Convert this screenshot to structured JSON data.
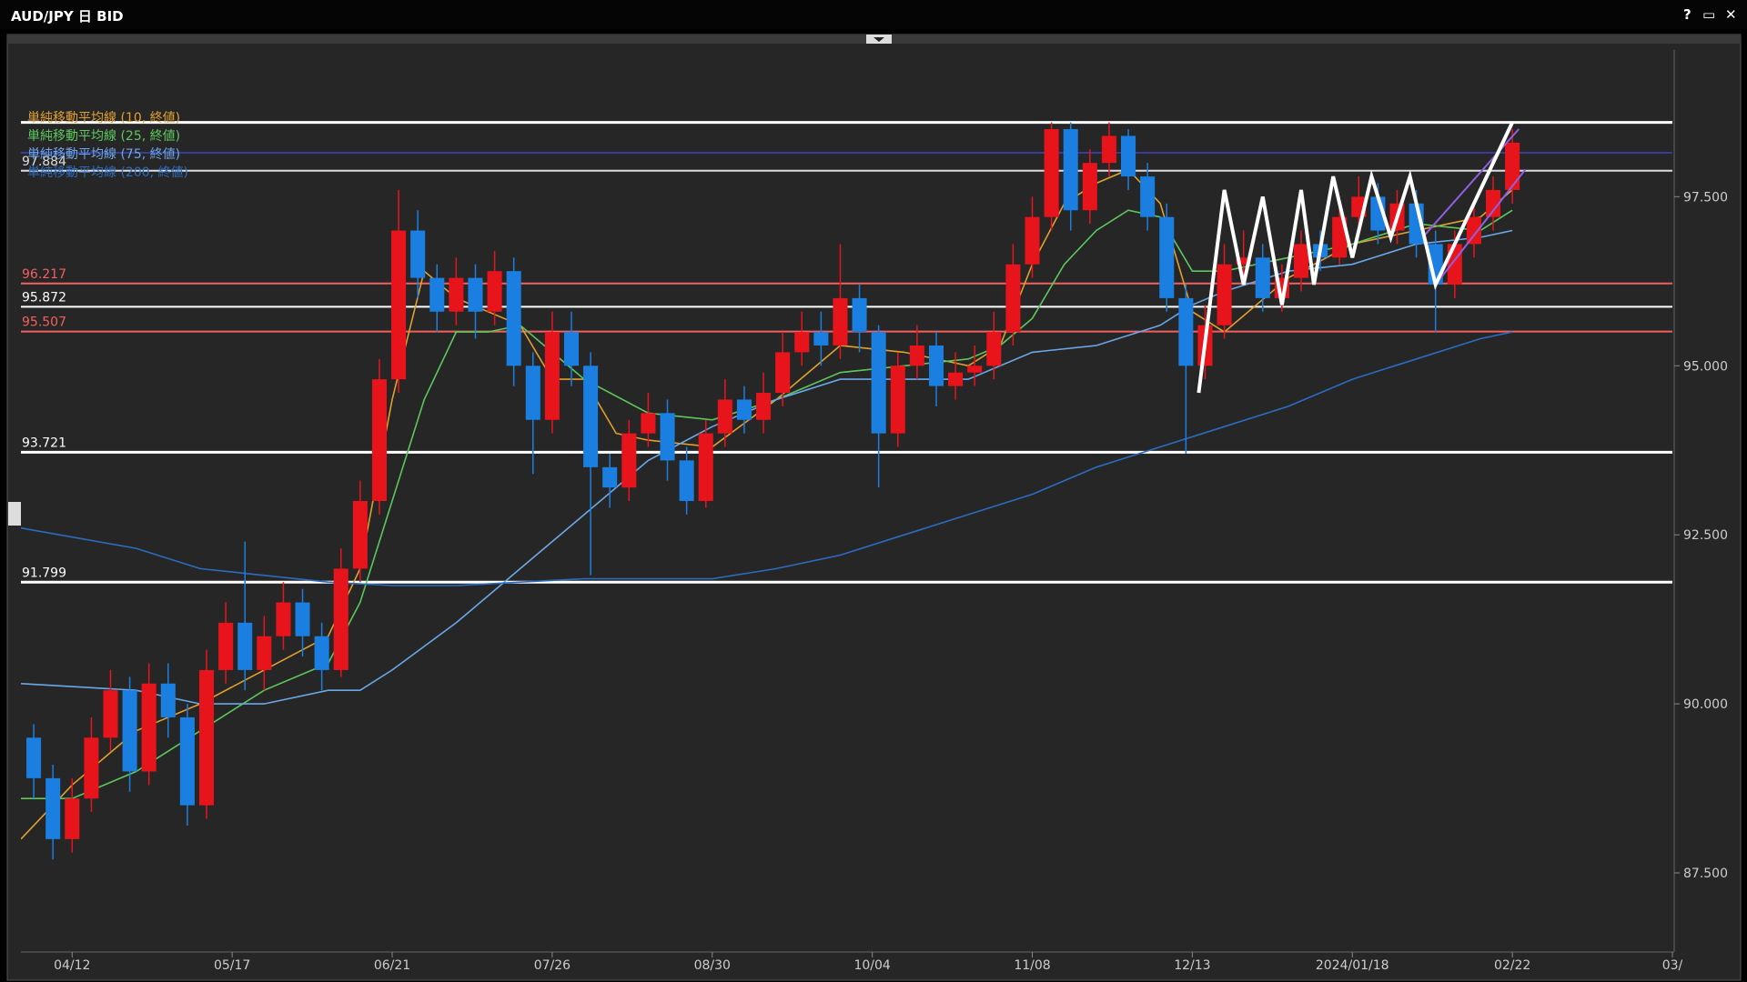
{
  "header": {
    "title": "AUD/JPY 日 BID"
  },
  "chart_data": {
    "type": "candlestick",
    "x": [
      -6,
      -3,
      0,
      3,
      6,
      9,
      12,
      15,
      18,
      21,
      24,
      27,
      30,
      33,
      36,
      39,
      42,
      45,
      48,
      51,
      54,
      57,
      60,
      63,
      66,
      69,
      72,
      75,
      78,
      81,
      84,
      87,
      90,
      93,
      96,
      99,
      102,
      105,
      108,
      111,
      114,
      117,
      120,
      123,
      126,
      129,
      132,
      135,
      138,
      141,
      144,
      147,
      150,
      153,
      156,
      159,
      162,
      165,
      168,
      171,
      174,
      177,
      180,
      183,
      186,
      189,
      192,
      195,
      198,
      201,
      204,
      207,
      210,
      213,
      216,
      219,
      222,
      225
    ],
    "ohlc": [
      [
        89.5,
        89.7,
        88.6,
        88.9
      ],
      [
        88.9,
        89.1,
        87.7,
        88.0
      ],
      [
        88.0,
        88.9,
        87.8,
        88.6
      ],
      [
        88.6,
        89.8,
        88.4,
        89.5
      ],
      [
        89.5,
        90.5,
        89.3,
        90.2
      ],
      [
        90.2,
        90.4,
        88.7,
        89.0
      ],
      [
        89.0,
        90.6,
        88.8,
        90.3
      ],
      [
        90.3,
        90.6,
        89.5,
        89.8
      ],
      [
        89.8,
        90.0,
        88.2,
        88.5
      ],
      [
        88.5,
        90.8,
        88.3,
        90.5
      ],
      [
        90.5,
        91.5,
        90.3,
        91.2
      ],
      [
        91.2,
        92.4,
        90.2,
        90.5
      ],
      [
        90.5,
        91.3,
        90.2,
        91.0
      ],
      [
        91.0,
        91.8,
        90.8,
        91.5
      ],
      [
        91.5,
        91.7,
        90.7,
        91.0
      ],
      [
        91.0,
        91.2,
        90.2,
        90.5
      ],
      [
        90.5,
        92.3,
        90.4,
        92.0
      ],
      [
        92.0,
        93.3,
        91.8,
        93.0
      ],
      [
        93.0,
        95.1,
        92.8,
        94.8
      ],
      [
        94.8,
        97.6,
        94.6,
        97.0
      ],
      [
        97.0,
        97.3,
        96.0,
        96.3
      ],
      [
        96.3,
        96.5,
        95.5,
        95.8
      ],
      [
        95.8,
        96.6,
        95.6,
        96.3
      ],
      [
        96.3,
        96.5,
        95.4,
        95.8
      ],
      [
        95.8,
        96.7,
        95.6,
        96.4
      ],
      [
        96.4,
        96.6,
        94.7,
        95.0
      ],
      [
        95.0,
        95.2,
        93.4,
        94.2
      ],
      [
        94.2,
        95.8,
        94.0,
        95.5
      ],
      [
        95.5,
        95.8,
        94.7,
        95.0
      ],
      [
        95.0,
        95.2,
        91.9,
        93.5
      ],
      [
        93.5,
        93.7,
        92.9,
        93.2
      ],
      [
        93.2,
        94.2,
        93.0,
        94.0
      ],
      [
        94.0,
        94.6,
        93.8,
        94.3
      ],
      [
        94.3,
        94.5,
        93.3,
        93.6
      ],
      [
        93.6,
        93.8,
        92.8,
        93.0
      ],
      [
        93.0,
        94.2,
        92.9,
        94.0
      ],
      [
        94.0,
        94.8,
        93.8,
        94.5
      ],
      [
        94.5,
        94.7,
        94.0,
        94.2
      ],
      [
        94.2,
        94.9,
        94.0,
        94.6
      ],
      [
        94.6,
        95.5,
        94.4,
        95.2
      ],
      [
        95.2,
        95.8,
        95.0,
        95.5
      ],
      [
        95.5,
        95.8,
        95.0,
        95.3
      ],
      [
        95.3,
        96.8,
        95.1,
        96.0
      ],
      [
        96.0,
        96.2,
        95.2,
        95.5
      ],
      [
        95.5,
        95.6,
        93.2,
        94.0
      ],
      [
        94.0,
        95.2,
        93.8,
        95.0
      ],
      [
        95.0,
        95.6,
        94.8,
        95.3
      ],
      [
        95.3,
        95.5,
        94.4,
        94.7
      ],
      [
        94.7,
        95.2,
        94.5,
        94.9
      ],
      [
        94.9,
        95.3,
        94.7,
        95.0
      ],
      [
        95.0,
        95.8,
        94.8,
        95.5
      ],
      [
        95.5,
        96.8,
        95.3,
        96.5
      ],
      [
        96.5,
        97.5,
        96.3,
        97.2
      ],
      [
        97.2,
        98.6,
        97.0,
        98.5
      ],
      [
        98.5,
        98.6,
        97.0,
        97.3
      ],
      [
        97.3,
        98.2,
        97.1,
        98.0
      ],
      [
        98.0,
        98.6,
        97.8,
        98.4
      ],
      [
        98.4,
        98.5,
        97.6,
        97.8
      ],
      [
        97.8,
        98.0,
        97.0,
        97.2
      ],
      [
        97.2,
        97.4,
        95.8,
        96.0
      ],
      [
        96.0,
        96.2,
        93.7,
        95.0
      ],
      [
        95.0,
        95.9,
        94.8,
        95.6
      ],
      [
        95.6,
        96.8,
        95.4,
        96.5
      ],
      [
        96.5,
        97.0,
        96.3,
        96.6
      ],
      [
        96.6,
        96.8,
        95.8,
        96.0
      ],
      [
        96.0,
        96.5,
        95.8,
        96.3
      ],
      [
        96.3,
        97.0,
        96.1,
        96.8
      ],
      [
        96.8,
        97.0,
        96.4,
        96.6
      ],
      [
        96.6,
        97.4,
        96.5,
        97.2
      ],
      [
        97.2,
        97.8,
        97.0,
        97.5
      ],
      [
        97.5,
        97.7,
        96.8,
        97.0
      ],
      [
        97.0,
        97.6,
        96.8,
        97.4
      ],
      [
        97.4,
        97.6,
        96.6,
        96.8
      ],
      [
        96.8,
        97.0,
        95.5,
        96.2
      ],
      [
        96.2,
        97.0,
        96.0,
        96.8
      ],
      [
        96.8,
        97.4,
        96.6,
        97.2
      ],
      [
        97.2,
        97.8,
        97.0,
        97.6
      ],
      [
        97.6,
        98.5,
        97.4,
        98.3
      ]
    ],
    "up_color": "#e8141c",
    "down_color": "#1a7fe0",
    "series": [
      {
        "name": "単純移動平均線 (10, 終値)",
        "color": "#e0a030",
        "x": [
          -8,
          0,
          10,
          20,
          30,
          40,
          45,
          50,
          55,
          60,
          65,
          70,
          75,
          80,
          85,
          90,
          100,
          110,
          120,
          130,
          140,
          145,
          150,
          155,
          160,
          165,
          170,
          175,
          180,
          190,
          200,
          210,
          220,
          225
        ],
        "values": [
          88.0,
          88.8,
          89.6,
          90.0,
          90.5,
          91.0,
          92.0,
          94.5,
          96.4,
          96.0,
          95.8,
          95.6,
          94.8,
          94.8,
          94.0,
          93.9,
          93.8,
          94.5,
          95.3,
          95.2,
          95.0,
          95.3,
          96.5,
          97.4,
          97.7,
          97.9,
          97.4,
          95.8,
          95.5,
          96.3,
          96.8,
          97.0,
          97.2,
          97.6
        ]
      },
      {
        "name": "単純移動平均線 (25, 終値)",
        "color": "#5cc85c",
        "x": [
          -8,
          0,
          10,
          20,
          30,
          40,
          45,
          50,
          55,
          60,
          65,
          70,
          75,
          80,
          90,
          100,
          110,
          120,
          130,
          140,
          145,
          150,
          155,
          160,
          165,
          170,
          175,
          180,
          190,
          200,
          210,
          220,
          225
        ],
        "values": [
          88.6,
          88.6,
          89.0,
          89.6,
          90.2,
          90.6,
          91.5,
          93.0,
          94.5,
          95.5,
          95.5,
          95.6,
          95.2,
          94.8,
          94.3,
          94.2,
          94.5,
          94.9,
          95.0,
          95.1,
          95.3,
          95.7,
          96.5,
          97.0,
          97.3,
          97.2,
          96.4,
          96.4,
          96.6,
          96.8,
          97.1,
          97.0,
          97.3
        ]
      },
      {
        "name": "単純移動平均線 (75, 終値)",
        "color": "#6aa8e8",
        "x": [
          -8,
          10,
          20,
          30,
          40,
          45,
          50,
          60,
          70,
          80,
          90,
          100,
          110,
          120,
          130,
          140,
          150,
          160,
          170,
          175,
          180,
          190,
          200,
          210,
          220,
          225
        ],
        "values": [
          90.3,
          90.2,
          90.0,
          90.0,
          90.2,
          90.2,
          90.5,
          91.2,
          92.0,
          92.8,
          93.6,
          94.1,
          94.5,
          94.8,
          94.8,
          94.8,
          95.2,
          95.3,
          95.6,
          95.9,
          96.1,
          96.4,
          96.5,
          96.8,
          96.9,
          97.0
        ]
      },
      {
        "name": "単純移動平均線 (200, 終値)",
        "color": "#2c6cc0",
        "x": [
          -8,
          10,
          20,
          30,
          40,
          50,
          60,
          70,
          80,
          90,
          100,
          110,
          120,
          130,
          140,
          150,
          160,
          170,
          180,
          190,
          200,
          210,
          220,
          225
        ],
        "values": [
          92.6,
          92.3,
          92.0,
          91.9,
          91.8,
          91.75,
          91.75,
          91.8,
          91.85,
          91.85,
          91.85,
          92.0,
          92.2,
          92.5,
          92.8,
          93.1,
          93.5,
          93.8,
          94.1,
          94.4,
          94.8,
          95.1,
          95.4,
          95.5
        ]
      }
    ],
    "levels": [
      {
        "value": 97.884,
        "color": "#dddddd"
      },
      {
        "value": 96.217,
        "color": "#f06060"
      },
      {
        "value": 95.872,
        "color": "#ffffff"
      },
      {
        "value": 95.507,
        "color": "#f06060"
      },
      {
        "value": 93.721,
        "color": "#ffffff"
      },
      {
        "value": 91.799,
        "color": "#ffffff"
      }
    ],
    "lines": [
      {
        "value": 98.6,
        "color": "#ffffff"
      },
      {
        "value": 98.15,
        "color": "#4040c0"
      }
    ],
    "zigzag": {
      "color": "#ffffff",
      "x": [
        176,
        180,
        183,
        186,
        189,
        192,
        194,
        197,
        200,
        203,
        206,
        209,
        213,
        225
      ],
      "values": [
        94.6,
        97.6,
        96.2,
        97.5,
        95.9,
        97.6,
        96.2,
        97.8,
        96.6,
        97.8,
        96.9,
        97.8,
        96.2,
        98.6
      ]
    },
    "channel": {
      "color": "#9060e0",
      "x": [
        211,
        226,
        213,
        227
      ],
      "values": [
        96.9,
        98.5,
        96.2,
        97.9
      ]
    },
    "xlim": [
      -8,
      250
    ],
    "xticks": [
      {
        "value": 0,
        "label": "04/12"
      },
      {
        "value": 25,
        "label": "05/17"
      },
      {
        "value": 50,
        "label": "06/21"
      },
      {
        "value": 75,
        "label": "07/26"
      },
      {
        "value": 100,
        "label": "08/30"
      },
      {
        "value": 125,
        "label": "10/04"
      },
      {
        "value": 150,
        "label": "11/08"
      },
      {
        "value": 175,
        "label": "12/13"
      },
      {
        "value": 200,
        "label": "2024/01/18"
      },
      {
        "value": 225,
        "label": "02/22"
      },
      {
        "value": 250,
        "label": "03/"
      }
    ],
    "ylim": [
      86.33,
      99.67
    ],
    "yticks": [
      {
        "value": 87.5,
        "label": "87.500"
      },
      {
        "value": 90,
        "label": "90.000"
      },
      {
        "value": 92.5,
        "label": "92.500"
      },
      {
        "value": 95,
        "label": "95.000"
      },
      {
        "value": 97.5,
        "label": "97.500"
      }
    ]
  }
}
